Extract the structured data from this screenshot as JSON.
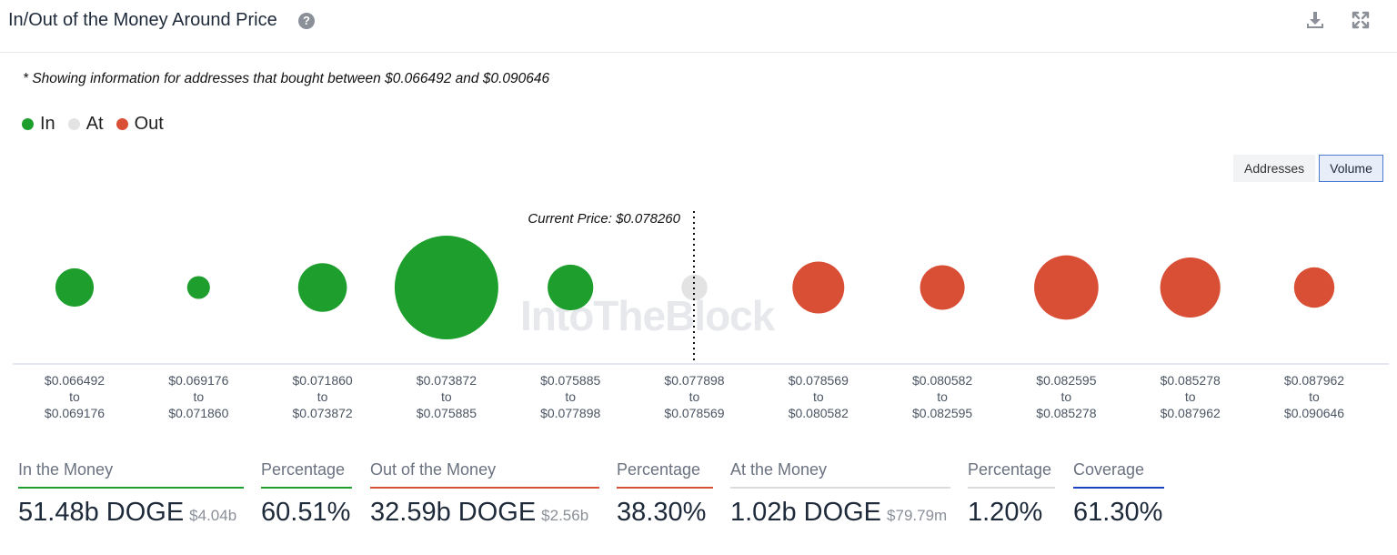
{
  "header": {
    "title": "In/Out of the Money Around Price",
    "help_icon": "question-circle-icon",
    "actions": [
      "download-icon",
      "expand-icon"
    ]
  },
  "note": "* Showing information for addresses that bought between $0.066492 and $0.090646",
  "legend": [
    {
      "label": "In",
      "color": "#1e9e2d"
    },
    {
      "label": "At",
      "color": "#e3e3e3"
    },
    {
      "label": "Out",
      "color": "#d94f36"
    }
  ],
  "toggle": {
    "options": [
      "Addresses",
      "Volume"
    ],
    "selected": "Volume"
  },
  "watermark": "IntoTheBlock",
  "chart_data": {
    "type": "scatter",
    "marker_annotation": "Current Price: $0.078260",
    "ranges": [
      {
        "from": "$0.066492",
        "to": "$0.069176",
        "status": "In"
      },
      {
        "from": "$0.069176",
        "to": "$0.071860",
        "status": "In"
      },
      {
        "from": "$0.071860",
        "to": "$0.073872",
        "status": "In"
      },
      {
        "from": "$0.073872",
        "to": "$0.075885",
        "status": "In"
      },
      {
        "from": "$0.075885",
        "to": "$0.077898",
        "status": "In"
      },
      {
        "from": "$0.077898",
        "to": "$0.078569",
        "status": "At"
      },
      {
        "from": "$0.078569",
        "to": "$0.080582",
        "status": "Out"
      },
      {
        "from": "$0.080582",
        "to": "$0.082595",
        "status": "Out"
      },
      {
        "from": "$0.082595",
        "to": "$0.085278",
        "status": "Out"
      },
      {
        "from": "$0.085278",
        "to": "$0.087962",
        "status": "Out"
      },
      {
        "from": "$0.087962",
        "to": "$0.090646",
        "status": "Out"
      }
    ],
    "relative_size": [
      0.37,
      0.22,
      0.47,
      1.0,
      0.44,
      0.25,
      0.5,
      0.43,
      0.62,
      0.58,
      0.39
    ],
    "colors": {
      "In": "#1e9e2d",
      "At": "#e3e3e3",
      "Out": "#d94f36"
    }
  },
  "stats": [
    {
      "label": "In the Money",
      "value": "51.48b DOGE",
      "sub": "$4.04b",
      "line_color": "#1e9e2d"
    },
    {
      "label": "Percentage",
      "value": "60.51%",
      "sub": "",
      "line_color": "#1e9e2d"
    },
    {
      "label": "Out of the Money",
      "value": "32.59b DOGE",
      "sub": "$2.56b",
      "line_color": "#d94f36"
    },
    {
      "label": "Percentage",
      "value": "38.30%",
      "sub": "",
      "line_color": "#d94f36"
    },
    {
      "label": "At the Money",
      "value": "1.02b DOGE",
      "sub": "$79.79m",
      "line_color": "#dcdcdc"
    },
    {
      "label": "Percentage",
      "value": "1.20%",
      "sub": "",
      "line_color": "#dcdcdc"
    },
    {
      "label": "Coverage",
      "value": "61.30%",
      "sub": "",
      "line_color": "#1f3fc4"
    }
  ]
}
